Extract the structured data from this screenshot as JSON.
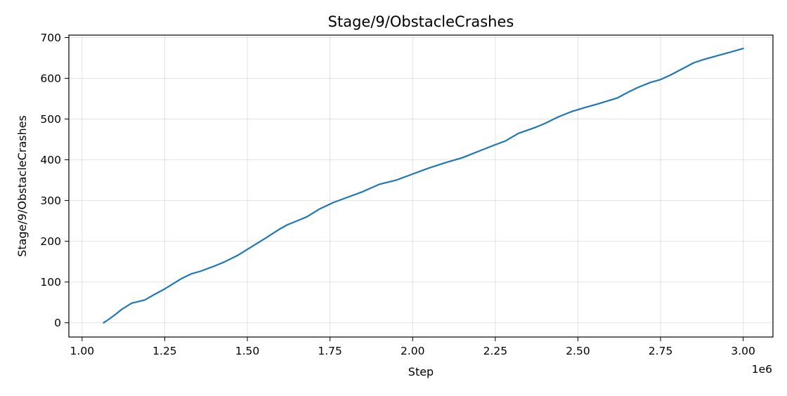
{
  "chart_data": {
    "type": "line",
    "title": "Stage/9/ObstacleCrashes",
    "xlabel": "Step",
    "ylabel": "Stage/9/ObstacleCrashes",
    "x_offset_label": "1e6",
    "x_scale": 1000000,
    "xlim": [
      0.96,
      3.09
    ],
    "ylim": [
      -35,
      706
    ],
    "x_ticks": [
      1.0,
      1.25,
      1.5,
      1.75,
      2.0,
      2.25,
      2.5,
      2.75,
      3.0
    ],
    "x_tick_labels": [
      "1.00",
      "1.25",
      "1.50",
      "1.75",
      "2.00",
      "2.25",
      "2.50",
      "2.75",
      "3.00"
    ],
    "y_ticks": [
      0,
      100,
      200,
      300,
      400,
      500,
      600,
      700
    ],
    "y_tick_labels": [
      "0",
      "100",
      "200",
      "300",
      "400",
      "500",
      "600",
      "700"
    ],
    "grid": true,
    "series": [
      {
        "color": "#1f77b4",
        "x": [
          1.065,
          1.08,
          1.1,
          1.12,
          1.15,
          1.19,
          1.22,
          1.25,
          1.27,
          1.3,
          1.33,
          1.36,
          1.4,
          1.43,
          1.47,
          1.5,
          1.55,
          1.6,
          1.62,
          1.65,
          1.68,
          1.72,
          1.76,
          1.8,
          1.85,
          1.9,
          1.95,
          2.0,
          2.05,
          2.1,
          2.15,
          2.2,
          2.25,
          2.28,
          2.32,
          2.37,
          2.4,
          2.44,
          2.48,
          2.52,
          2.56,
          2.6,
          2.62,
          2.65,
          2.68,
          2.72,
          2.75,
          2.78,
          2.82,
          2.85,
          2.88,
          2.92,
          2.96,
          3.0
        ],
        "y": [
          0,
          8,
          20,
          33,
          48,
          56,
          70,
          83,
          93,
          108,
          120,
          127,
          139,
          149,
          165,
          180,
          205,
          231,
          240,
          250,
          260,
          280,
          295,
          307,
          322,
          340,
          350,
          365,
          380,
          393,
          405,
          421,
          437,
          446,
          465,
          479,
          489,
          505,
          518,
          528,
          537,
          547,
          552,
          565,
          577,
          590,
          597,
          608,
          625,
          638,
          646,
          655,
          664,
          673
        ]
      }
    ]
  }
}
